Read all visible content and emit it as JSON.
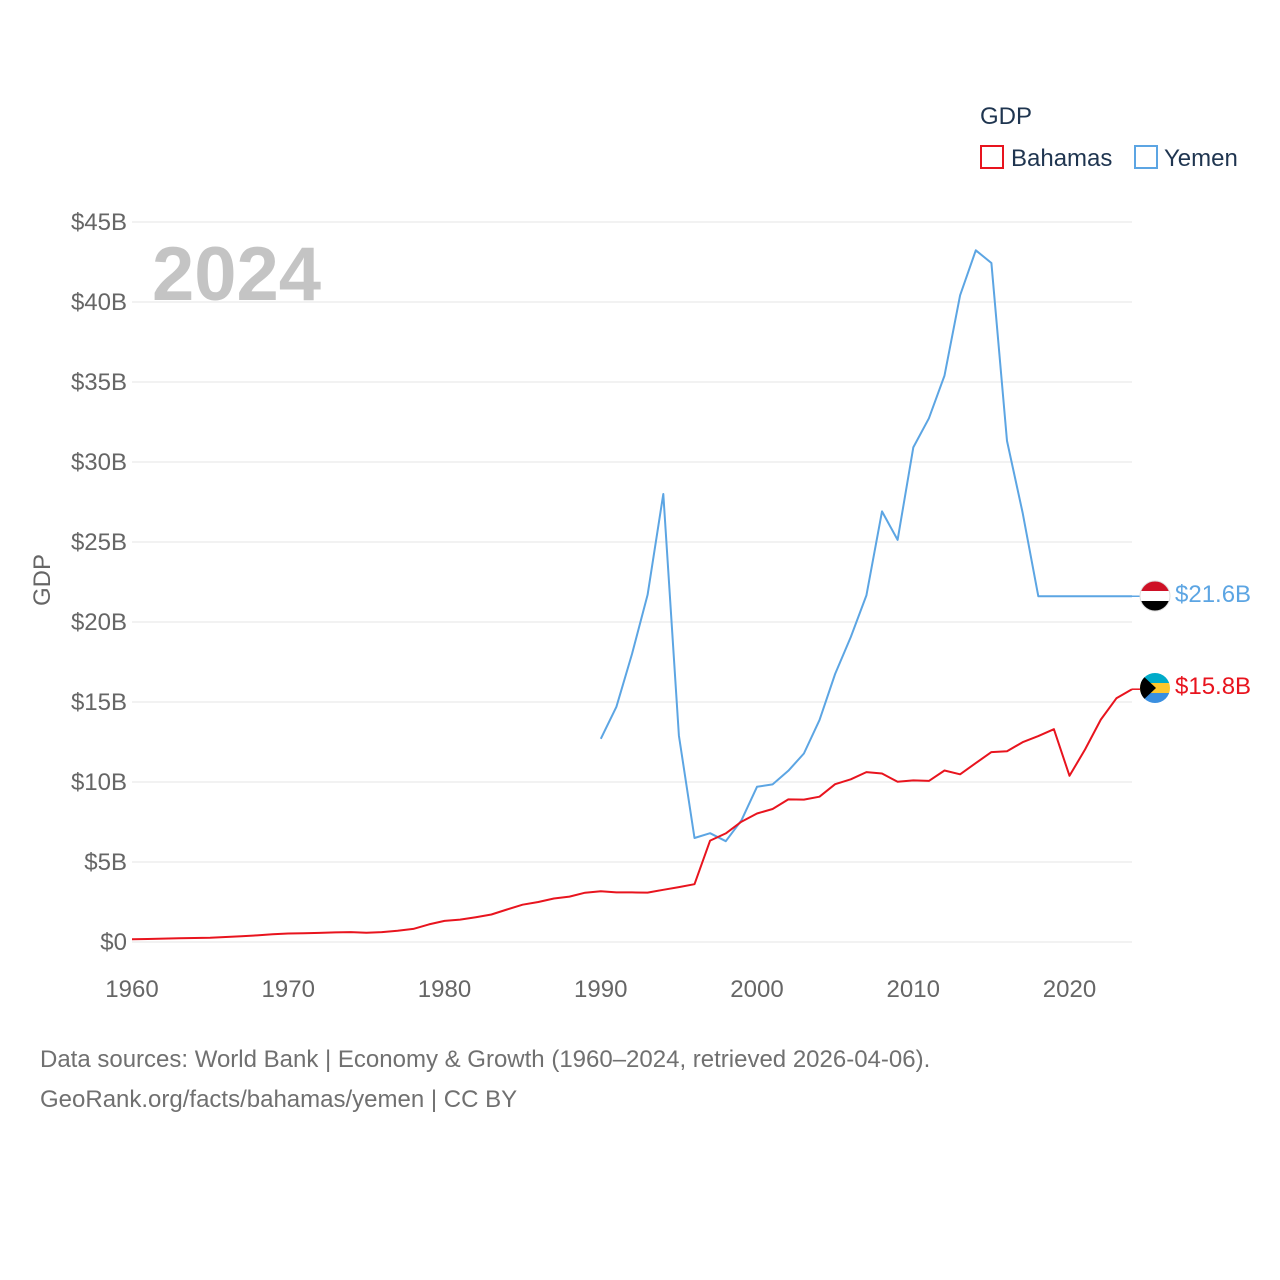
{
  "chart_data": {
    "type": "line",
    "year_label": "2024",
    "ylabel": "GDP",
    "xlim": [
      1960,
      2024
    ],
    "ylim": [
      0,
      45
    ],
    "yticks": [
      {
        "value": 0,
        "label": "$0"
      },
      {
        "value": 5,
        "label": "$5B"
      },
      {
        "value": 10,
        "label": "$10B"
      },
      {
        "value": 15,
        "label": "$15B"
      },
      {
        "value": 20,
        "label": "$20B"
      },
      {
        "value": 25,
        "label": "$25B"
      },
      {
        "value": 30,
        "label": "$30B"
      },
      {
        "value": 35,
        "label": "$35B"
      },
      {
        "value": 40,
        "label": "$40B"
      },
      {
        "value": 45,
        "label": "$45B"
      }
    ],
    "xticks": [
      {
        "value": 1960,
        "label": "1960"
      },
      {
        "value": 1970,
        "label": "1970"
      },
      {
        "value": 1980,
        "label": "1980"
      },
      {
        "value": 1990,
        "label": "1990"
      },
      {
        "value": 2000,
        "label": "2000"
      },
      {
        "value": 2010,
        "label": "2010"
      },
      {
        "value": 2020,
        "label": "2020"
      }
    ],
    "legend": {
      "title": "GDP",
      "position": "top-right"
    },
    "series": [
      {
        "name": "Bahamas",
        "color": "#e8141e",
        "flag": "bahamas-flag",
        "end_label": "$15.8B",
        "points": [
          [
            1960,
            0.17
          ],
          [
            1961,
            0.19
          ],
          [
            1962,
            0.21
          ],
          [
            1963,
            0.23
          ],
          [
            1964,
            0.25
          ],
          [
            1965,
            0.27
          ],
          [
            1966,
            0.31
          ],
          [
            1967,
            0.36
          ],
          [
            1968,
            0.41
          ],
          [
            1969,
            0.48
          ],
          [
            1970,
            0.53
          ],
          [
            1971,
            0.55
          ],
          [
            1972,
            0.57
          ],
          [
            1973,
            0.6
          ],
          [
            1974,
            0.62
          ],
          [
            1975,
            0.58
          ],
          [
            1976,
            0.62
          ],
          [
            1977,
            0.7
          ],
          [
            1978,
            0.82
          ],
          [
            1979,
            1.1
          ],
          [
            1980,
            1.32
          ],
          [
            1981,
            1.4
          ],
          [
            1982,
            1.55
          ],
          [
            1983,
            1.72
          ],
          [
            1984,
            2.03
          ],
          [
            1985,
            2.33
          ],
          [
            1986,
            2.5
          ],
          [
            1987,
            2.72
          ],
          [
            1988,
            2.84
          ],
          [
            1989,
            3.08
          ],
          [
            1990,
            3.17
          ],
          [
            1991,
            3.1
          ],
          [
            1992,
            3.1
          ],
          [
            1993,
            3.09
          ],
          [
            1994,
            3.26
          ],
          [
            1995,
            3.43
          ],
          [
            1996,
            3.61
          ],
          [
            1997,
            6.34
          ],
          [
            1998,
            6.79
          ],
          [
            1999,
            7.52
          ],
          [
            2000,
            8.03
          ],
          [
            2001,
            8.31
          ],
          [
            2002,
            8.91
          ],
          [
            2003,
            8.9
          ],
          [
            2004,
            9.08
          ],
          [
            2005,
            9.86
          ],
          [
            2006,
            10.17
          ],
          [
            2007,
            10.62
          ],
          [
            2008,
            10.53
          ],
          [
            2009,
            10.01
          ],
          [
            2010,
            10.1
          ],
          [
            2011,
            10.07
          ],
          [
            2012,
            10.72
          ],
          [
            2013,
            10.48
          ],
          [
            2014,
            11.18
          ],
          [
            2015,
            11.87
          ],
          [
            2016,
            11.92
          ],
          [
            2017,
            12.49
          ],
          [
            2018,
            12.87
          ],
          [
            2019,
            13.3
          ],
          [
            2020,
            10.39
          ],
          [
            2021,
            12.04
          ],
          [
            2022,
            13.9
          ],
          [
            2023,
            15.23
          ],
          [
            2024,
            15.8
          ]
        ]
      },
      {
        "name": "Yemen",
        "color": "#5ca5e3",
        "flag": "yemen-flag",
        "end_label": "$21.6B",
        "points": [
          [
            1990,
            12.7
          ],
          [
            1991,
            14.7
          ],
          [
            1992,
            18.0
          ],
          [
            1993,
            21.7
          ],
          [
            1994,
            28.0
          ],
          [
            1995,
            12.9
          ],
          [
            1996,
            6.5
          ],
          [
            1997,
            6.8
          ],
          [
            1998,
            6.3
          ],
          [
            1999,
            7.6
          ],
          [
            2000,
            9.7
          ],
          [
            2001,
            9.85
          ],
          [
            2002,
            10.7
          ],
          [
            2003,
            11.78
          ],
          [
            2004,
            13.87
          ],
          [
            2005,
            16.75
          ],
          [
            2006,
            19.06
          ],
          [
            2007,
            21.66
          ],
          [
            2008,
            26.91
          ],
          [
            2009,
            25.13
          ],
          [
            2010,
            30.91
          ],
          [
            2011,
            32.73
          ],
          [
            2012,
            35.4
          ],
          [
            2013,
            40.42
          ],
          [
            2014,
            43.23
          ],
          [
            2015,
            42.44
          ],
          [
            2016,
            31.32
          ],
          [
            2017,
            26.84
          ],
          [
            2018,
            21.61
          ],
          [
            2019,
            21.61
          ],
          [
            2020,
            21.61
          ],
          [
            2021,
            21.61
          ],
          [
            2022,
            21.61
          ],
          [
            2023,
            21.61
          ],
          [
            2024,
            21.61
          ]
        ]
      }
    ]
  },
  "source": {
    "line1": "Data sources: World Bank | Economy & Growth (1960–2024, retrieved 2026-04-06).",
    "line2": "GeoRank.org/facts/bahamas/yemen | CC BY"
  }
}
